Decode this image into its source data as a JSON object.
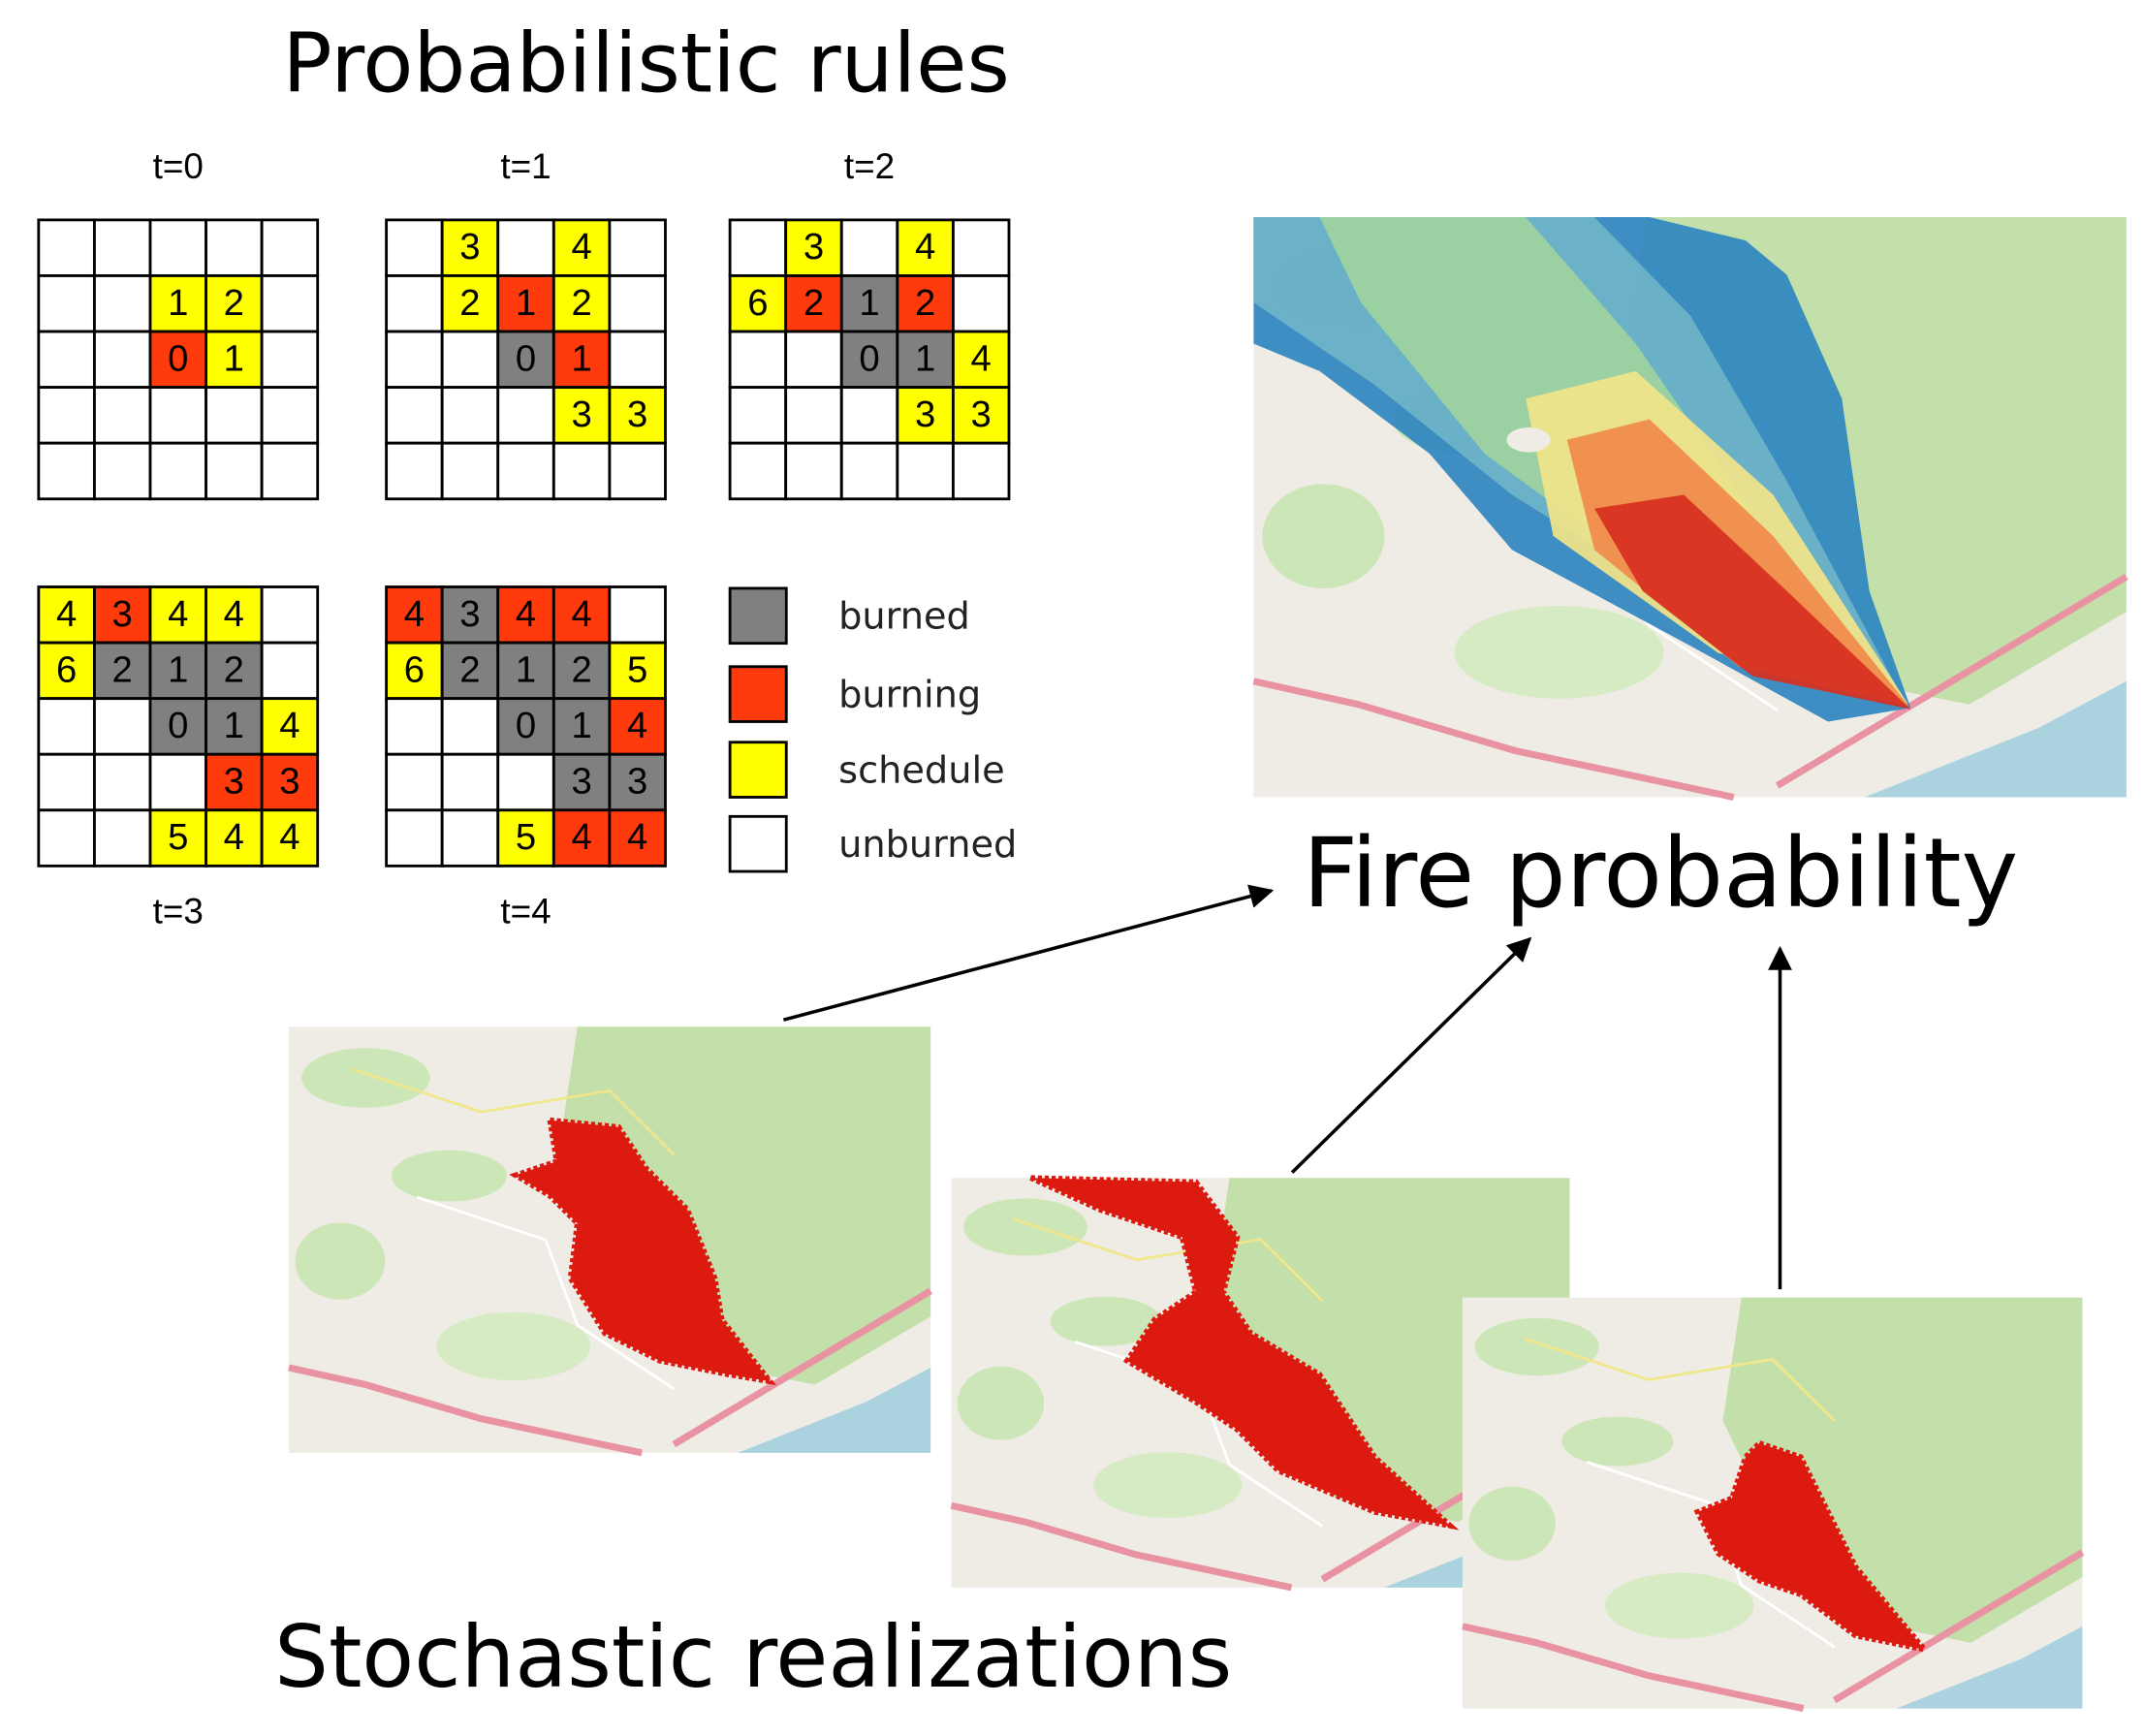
{
  "title": "Probabilistic  rules",
  "grids": [
    {
      "label": "t=0",
      "rows": [
        [
          {
            "state": "unburned"
          },
          {
            "state": "unburned"
          },
          {
            "state": "unburned"
          },
          {
            "state": "unburned"
          },
          {
            "state": "unburned"
          }
        ],
        [
          {
            "state": "unburned"
          },
          {
            "state": "unburned"
          },
          {
            "state": "schedule",
            "label": "1"
          },
          {
            "state": "schedule",
            "label": "2"
          },
          {
            "state": "unburned"
          }
        ],
        [
          {
            "state": "unburned"
          },
          {
            "state": "unburned"
          },
          {
            "state": "burning",
            "label": "0"
          },
          {
            "state": "schedule",
            "label": "1"
          },
          {
            "state": "unburned"
          }
        ],
        [
          {
            "state": "unburned"
          },
          {
            "state": "unburned"
          },
          {
            "state": "unburned"
          },
          {
            "state": "unburned"
          },
          {
            "state": "unburned"
          }
        ],
        [
          {
            "state": "unburned"
          },
          {
            "state": "unburned"
          },
          {
            "state": "unburned"
          },
          {
            "state": "unburned"
          },
          {
            "state": "unburned"
          }
        ]
      ]
    },
    {
      "label": "t=1",
      "rows": [
        [
          {
            "state": "unburned"
          },
          {
            "state": "schedule",
            "label": "3"
          },
          {
            "state": "unburned"
          },
          {
            "state": "schedule",
            "label": "4"
          },
          {
            "state": "unburned"
          }
        ],
        [
          {
            "state": "unburned"
          },
          {
            "state": "schedule",
            "label": "2"
          },
          {
            "state": "burning",
            "label": "1"
          },
          {
            "state": "schedule",
            "label": "2"
          },
          {
            "state": "unburned"
          }
        ],
        [
          {
            "state": "unburned"
          },
          {
            "state": "unburned"
          },
          {
            "state": "burned",
            "label": "0"
          },
          {
            "state": "burning",
            "label": "1"
          },
          {
            "state": "unburned"
          }
        ],
        [
          {
            "state": "unburned"
          },
          {
            "state": "unburned"
          },
          {
            "state": "unburned"
          },
          {
            "state": "schedule",
            "label": "3"
          },
          {
            "state": "schedule",
            "label": "3"
          }
        ],
        [
          {
            "state": "unburned"
          },
          {
            "state": "unburned"
          },
          {
            "state": "unburned"
          },
          {
            "state": "unburned"
          },
          {
            "state": "unburned"
          }
        ]
      ]
    },
    {
      "label": "t=2",
      "rows": [
        [
          {
            "state": "unburned"
          },
          {
            "state": "schedule",
            "label": "3"
          },
          {
            "state": "unburned"
          },
          {
            "state": "schedule",
            "label": "4"
          },
          {
            "state": "unburned"
          }
        ],
        [
          {
            "state": "schedule",
            "label": "6"
          },
          {
            "state": "burning",
            "label": "2"
          },
          {
            "state": "burned",
            "label": "1"
          },
          {
            "state": "burning",
            "label": "2"
          },
          {
            "state": "unburned"
          }
        ],
        [
          {
            "state": "unburned"
          },
          {
            "state": "unburned"
          },
          {
            "state": "burned",
            "label": "0"
          },
          {
            "state": "burned",
            "label": "1"
          },
          {
            "state": "schedule",
            "label": "4"
          }
        ],
        [
          {
            "state": "unburned"
          },
          {
            "state": "unburned"
          },
          {
            "state": "unburned"
          },
          {
            "state": "schedule",
            "label": "3"
          },
          {
            "state": "schedule",
            "label": "3"
          }
        ],
        [
          {
            "state": "unburned"
          },
          {
            "state": "unburned"
          },
          {
            "state": "unburned"
          },
          {
            "state": "unburned"
          },
          {
            "state": "unburned"
          }
        ]
      ]
    },
    {
      "label": "t=3",
      "rows": [
        [
          {
            "state": "schedule",
            "label": "4"
          },
          {
            "state": "burning",
            "label": "3"
          },
          {
            "state": "schedule",
            "label": "4"
          },
          {
            "state": "schedule",
            "label": "4"
          },
          {
            "state": "unburned"
          }
        ],
        [
          {
            "state": "schedule",
            "label": "6"
          },
          {
            "state": "burned",
            "label": "2"
          },
          {
            "state": "burned",
            "label": "1"
          },
          {
            "state": "burned",
            "label": "2"
          },
          {
            "state": "unburned"
          }
        ],
        [
          {
            "state": "unburned"
          },
          {
            "state": "unburned"
          },
          {
            "state": "burned",
            "label": "0"
          },
          {
            "state": "burned",
            "label": "1"
          },
          {
            "state": "schedule",
            "label": "4"
          }
        ],
        [
          {
            "state": "unburned"
          },
          {
            "state": "unburned"
          },
          {
            "state": "unburned"
          },
          {
            "state": "burning",
            "label": "3"
          },
          {
            "state": "burning",
            "label": "3"
          }
        ],
        [
          {
            "state": "unburned"
          },
          {
            "state": "unburned"
          },
          {
            "state": "schedule",
            "label": "5"
          },
          {
            "state": "schedule",
            "label": "4"
          },
          {
            "state": "schedule",
            "label": "4"
          }
        ]
      ]
    },
    {
      "label": "t=4",
      "rows": [
        [
          {
            "state": "burning",
            "label": "4"
          },
          {
            "state": "burned",
            "label": "3"
          },
          {
            "state": "burning",
            "label": "4"
          },
          {
            "state": "burning",
            "label": "4"
          },
          {
            "state": "unburned"
          }
        ],
        [
          {
            "state": "schedule",
            "label": "6"
          },
          {
            "state": "burned",
            "label": "2"
          },
          {
            "state": "burned",
            "label": "1"
          },
          {
            "state": "burned",
            "label": "2"
          },
          {
            "state": "schedule",
            "label": "5"
          }
        ],
        [
          {
            "state": "unburned"
          },
          {
            "state": "unburned"
          },
          {
            "state": "burned",
            "label": "0"
          },
          {
            "state": "burned",
            "label": "1"
          },
          {
            "state": "burning",
            "label": "4"
          }
        ],
        [
          {
            "state": "unburned"
          },
          {
            "state": "unburned"
          },
          {
            "state": "unburned"
          },
          {
            "state": "burned",
            "label": "3"
          },
          {
            "state": "burned",
            "label": "3"
          }
        ],
        [
          {
            "state": "unburned"
          },
          {
            "state": "unburned"
          },
          {
            "state": "schedule",
            "label": "5"
          },
          {
            "state": "burning",
            "label": "4"
          },
          {
            "state": "burning",
            "label": "4"
          }
        ]
      ]
    }
  ],
  "legend": [
    {
      "state": "burned",
      "label": "burned",
      "color": "#808080"
    },
    {
      "state": "burning",
      "label": "burning",
      "color": "#ff3a0c"
    },
    {
      "state": "schedule",
      "label": "schedule",
      "color": "#ffff00"
    },
    {
      "state": "unburned",
      "label": "unburned",
      "color": "#ffffff"
    }
  ],
  "fire_probability_label": "Fire probability",
  "realizations_label": "Stochastic realizations"
}
